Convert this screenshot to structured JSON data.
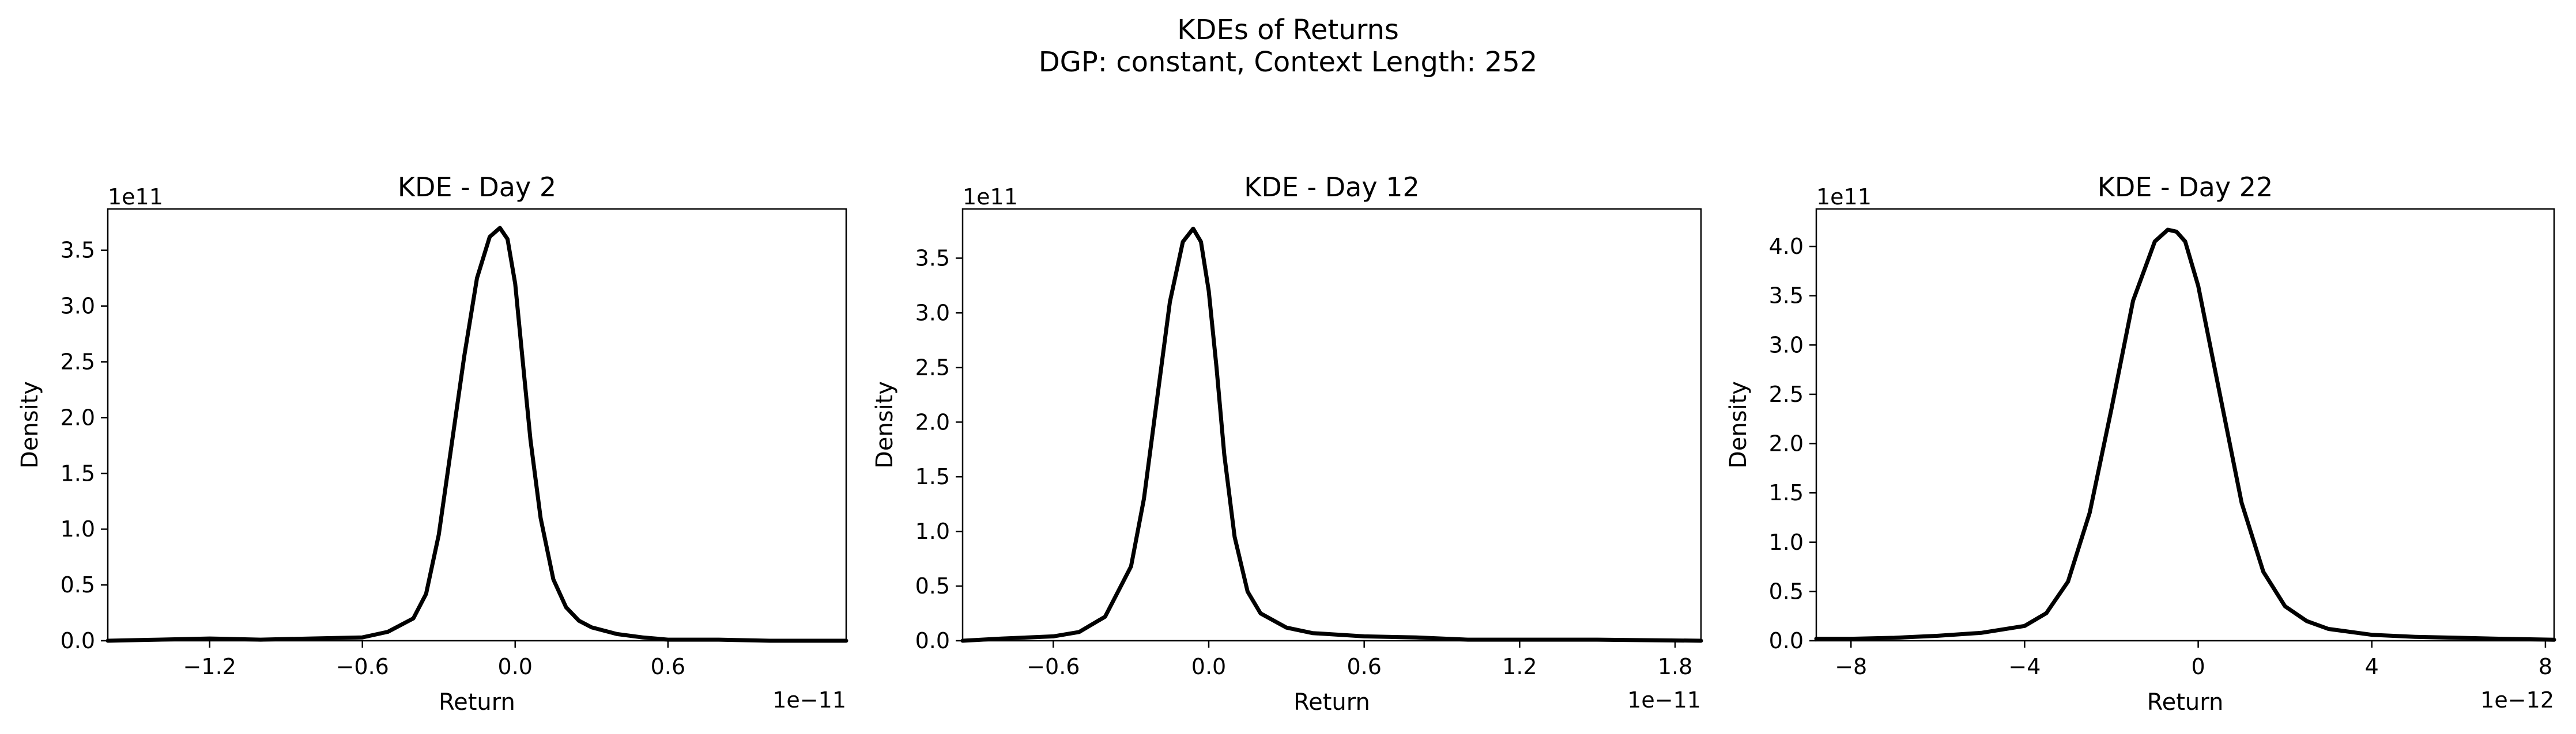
{
  "figure": {
    "title": "KDEs of Returns",
    "subtitle": "DGP: constant, Context Length: 252"
  },
  "chart_data": [
    {
      "type": "line",
      "title": "KDE - Day 2",
      "xlabel": "Return",
      "ylabel": "Density",
      "x_offset_text": "1e−11",
      "y_offset_text": "1e11",
      "xlim": [
        -1.6,
        1.3
      ],
      "ylim": [
        0,
        3.87
      ],
      "xticks": [
        -1.2,
        -0.6,
        0.0,
        0.6
      ],
      "xtick_labels": [
        "−1.2",
        "−0.6",
        "0.0",
        "0.6"
      ],
      "yticks": [
        0,
        0.5,
        1.0,
        1.5,
        2.0,
        2.5,
        3.0,
        3.5
      ],
      "ytick_labels": [
        "0.0",
        "0.5",
        "1.0",
        "1.5",
        "2.0",
        "2.5",
        "3.0",
        "3.5"
      ],
      "series": [
        {
          "color": "#000000",
          "x": [
            -1.6,
            -1.4,
            -1.2,
            -1.0,
            -0.8,
            -0.6,
            -0.5,
            -0.4,
            -0.35,
            -0.3,
            -0.25,
            -0.2,
            -0.15,
            -0.1,
            -0.06,
            -0.03,
            0.0,
            0.03,
            0.06,
            0.1,
            0.15,
            0.2,
            0.25,
            0.3,
            0.4,
            0.5,
            0.6,
            0.8,
            1.0,
            1.3
          ],
          "y": [
            0.0,
            0.01,
            0.02,
            0.01,
            0.02,
            0.03,
            0.08,
            0.2,
            0.42,
            0.95,
            1.75,
            2.55,
            3.25,
            3.62,
            3.7,
            3.6,
            3.2,
            2.5,
            1.8,
            1.1,
            0.55,
            0.3,
            0.18,
            0.12,
            0.06,
            0.03,
            0.01,
            0.01,
            0.0,
            0.0
          ]
        }
      ]
    },
    {
      "type": "line",
      "title": "KDE - Day 12",
      "xlabel": "Return",
      "ylabel": "Density",
      "x_offset_text": "1e−11",
      "y_offset_text": "1e11",
      "xlim": [
        -0.95,
        1.9
      ],
      "ylim": [
        0,
        3.95
      ],
      "xticks": [
        -0.6,
        0.0,
        0.6,
        1.2,
        1.8
      ],
      "xtick_labels": [
        "−0.6",
        "0.0",
        "0.6",
        "1.2",
        "1.8"
      ],
      "yticks": [
        0,
        0.5,
        1.0,
        1.5,
        2.0,
        2.5,
        3.0,
        3.5
      ],
      "ytick_labels": [
        "0.0",
        "0.5",
        "1.0",
        "1.5",
        "2.0",
        "2.5",
        "3.0",
        "3.5"
      ],
      "series": [
        {
          "color": "#000000",
          "x": [
            -0.95,
            -0.8,
            -0.6,
            -0.5,
            -0.4,
            -0.3,
            -0.25,
            -0.2,
            -0.15,
            -0.1,
            -0.06,
            -0.03,
            0.0,
            0.03,
            0.06,
            0.1,
            0.15,
            0.2,
            0.3,
            0.4,
            0.6,
            0.8,
            1.0,
            1.2,
            1.5,
            1.9
          ],
          "y": [
            0.0,
            0.02,
            0.04,
            0.08,
            0.22,
            0.68,
            1.3,
            2.2,
            3.1,
            3.65,
            3.77,
            3.65,
            3.2,
            2.5,
            1.7,
            0.95,
            0.45,
            0.25,
            0.12,
            0.07,
            0.04,
            0.03,
            0.01,
            0.01,
            0.01,
            0.0
          ]
        }
      ]
    },
    {
      "type": "line",
      "title": "KDE - Day 22",
      "xlabel": "Return",
      "ylabel": "Density",
      "x_offset_text": "1e−12",
      "y_offset_text": "1e11",
      "xlim": [
        -8.8,
        8.2
      ],
      "ylim": [
        0,
        4.38
      ],
      "xticks": [
        -8,
        -4,
        0,
        4,
        8
      ],
      "xtick_labels": [
        "−8",
        "−4",
        "0",
        "4",
        "8"
      ],
      "yticks": [
        0,
        0.5,
        1.0,
        1.5,
        2.0,
        2.5,
        3.0,
        3.5,
        4.0
      ],
      "ytick_labels": [
        "0.0",
        "0.5",
        "1.0",
        "1.5",
        "2.0",
        "2.5",
        "3.0",
        "3.5",
        "4.0"
      ],
      "series": [
        {
          "color": "#000000",
          "x": [
            -8.8,
            -8,
            -7,
            -6,
            -5,
            -4,
            -3.5,
            -3,
            -2.5,
            -2,
            -1.5,
            -1,
            -0.7,
            -0.5,
            -0.3,
            0,
            0.5,
            1,
            1.5,
            2,
            2.5,
            3,
            4,
            5,
            6,
            7,
            8.2
          ],
          "y": [
            0.02,
            0.02,
            0.03,
            0.05,
            0.08,
            0.15,
            0.28,
            0.6,
            1.3,
            2.35,
            3.45,
            4.05,
            4.17,
            4.15,
            4.05,
            3.6,
            2.5,
            1.4,
            0.7,
            0.35,
            0.2,
            0.12,
            0.06,
            0.04,
            0.03,
            0.02,
            0.01
          ]
        }
      ]
    }
  ]
}
